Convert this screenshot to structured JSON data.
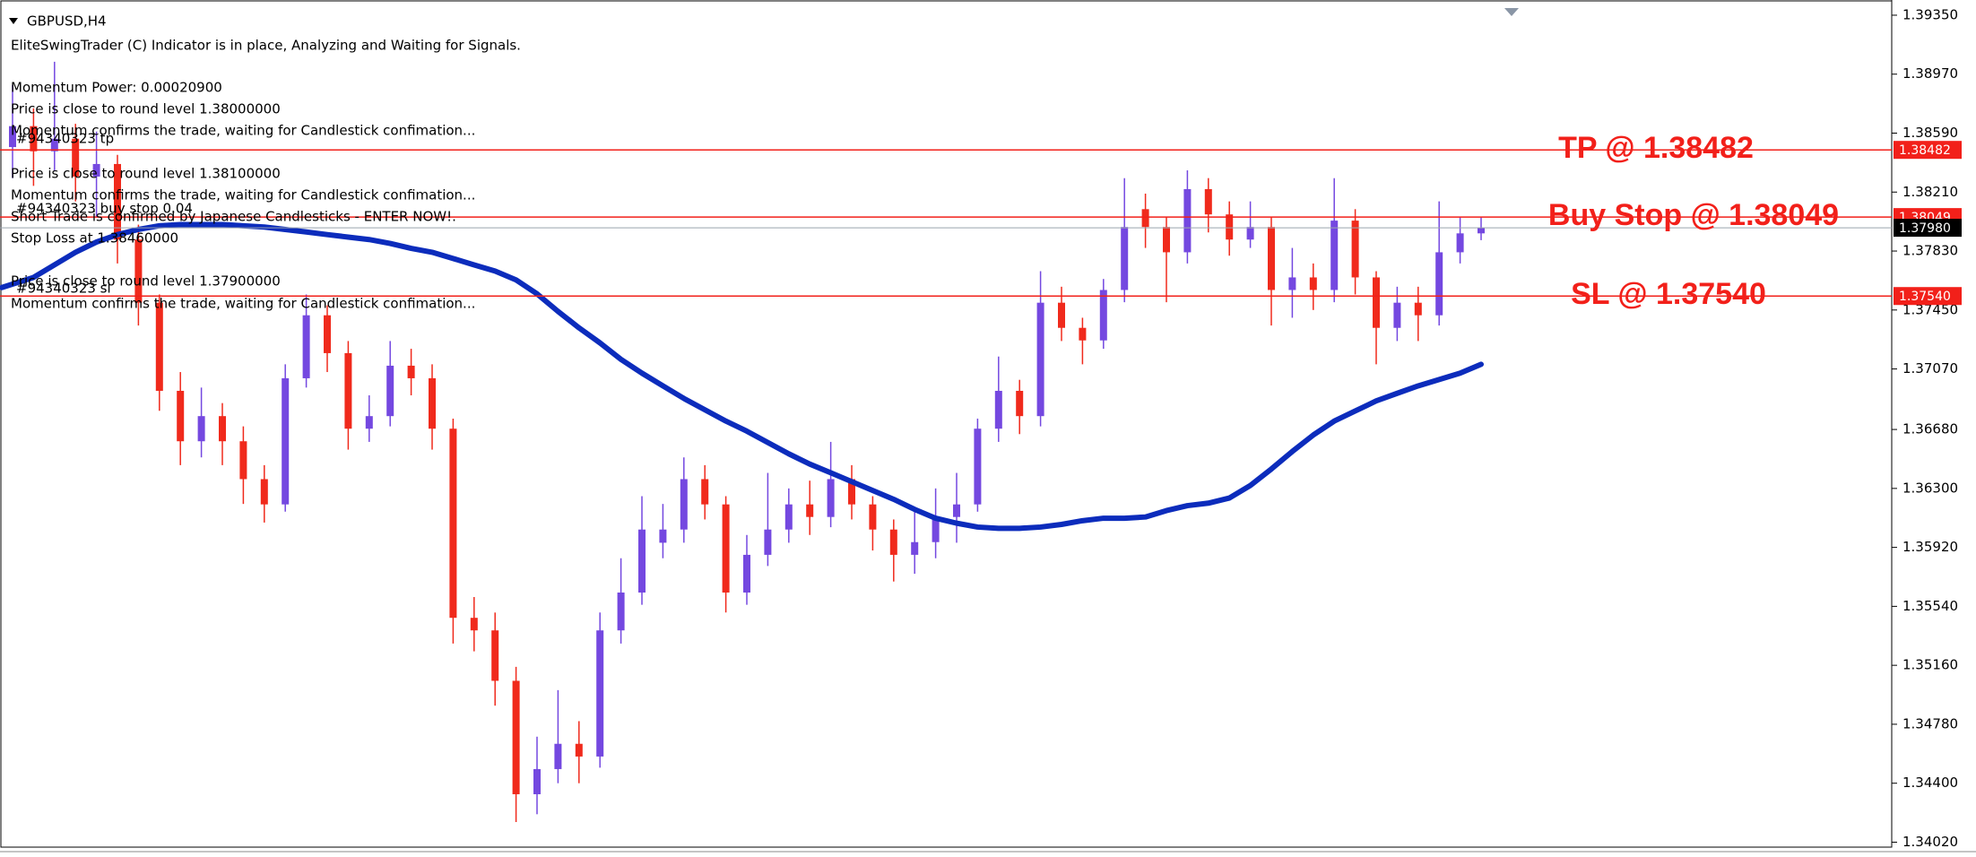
{
  "chart_data": {
    "type": "candlestick",
    "title": "GBPUSD,H4",
    "notes": [
      "EliteSwingTrader (C) Indicator is in place, Analyzing and Waiting for Signals.",
      "Momentum Power: 0.00020900",
      "Price is close to round level 1.38000000",
      "Momentum confirms the trade, waiting for Candlestick confimation...",
      "Price is close to round level 1.38100000",
      "Momentum confirms the trade, waiting for Candlestick confimation...",
      "Short Trade is confirmed by Japanese Candlesticks - ENTER NOW!.",
      "Stop Loss at 1.38460000",
      "Price is close to round level 1.37900000",
      "Momentum confirms the trade, waiting for Candlestick confimation..."
    ],
    "orders": [
      "#94340323 tp",
      "#94340323 buy stop 0.04",
      "#94340323 sl"
    ],
    "ylim": [
      1.33988,
      1.39448
    ],
    "yticks": [
      {
        "value": 1.3935,
        "label": "1.39350"
      },
      {
        "value": 1.3897,
        "label": "1.38970"
      },
      {
        "value": 1.3859,
        "label": "1.38590"
      },
      {
        "value": 1.3821,
        "label": "1.38210"
      },
      {
        "value": 1.3783,
        "label": "1.37830"
      },
      {
        "value": 1.3745,
        "label": "1.37450"
      },
      {
        "value": 1.3707,
        "label": "1.37070"
      },
      {
        "value": 1.3668,
        "label": "1.36680"
      },
      {
        "value": 1.363,
        "label": "1.36300"
      },
      {
        "value": 1.3592,
        "label": "1.35920"
      },
      {
        "value": 1.3554,
        "label": "1.35540"
      },
      {
        "value": 1.3516,
        "label": "1.35160"
      },
      {
        "value": 1.3478,
        "label": "1.34780"
      },
      {
        "value": 1.344,
        "label": "1.34400"
      },
      {
        "value": 1.3402,
        "label": "1.34020"
      }
    ],
    "candles": {
      "up_color": "#7448e0",
      "down_color": "#f02a1c",
      "open": [
        1.385,
        1.38635,
        1.38473,
        1.38554,
        1.3831,
        1.38391,
        1.37904,
        1.37497,
        1.36929,
        1.36604,
        1.36766,
        1.36604,
        1.3636,
        1.36197,
        1.3701,
        1.37416,
        1.37172,
        1.36685,
        1.36766,
        1.37091,
        1.3701,
        1.36685,
        1.35466,
        1.35385,
        1.3506,
        1.34329,
        1.34491,
        1.34654,
        1.34572,
        1.35385,
        1.35629,
        1.3595,
        1.36035,
        1.3636,
        1.36197,
        1.35629,
        1.35872,
        1.36035,
        1.36197,
        1.36116,
        1.3636,
        1.36197,
        1.36035,
        1.35872,
        1.35954,
        1.36116,
        1.36197,
        1.36685,
        1.36929,
        1.36766,
        1.37497,
        1.37335,
        1.37254,
        1.37579,
        1.381,
        1.37985,
        1.37822,
        1.38229,
        1.38066,
        1.37904,
        1.37985,
        1.37579,
        1.3766,
        1.37579,
        1.38026,
        1.3766,
        1.37335,
        1.37497,
        1.37416,
        1.37822,
        1.37944
      ],
      "high": [
        1.389,
        1.3875,
        1.3905,
        1.3865,
        1.386,
        1.3845,
        1.38,
        1.3755,
        1.3705,
        1.3695,
        1.3685,
        1.367,
        1.3645,
        1.371,
        1.3755,
        1.3748,
        1.3725,
        1.369,
        1.3725,
        1.372,
        1.371,
        1.3675,
        1.356,
        1.355,
        1.3515,
        1.347,
        1.35,
        1.348,
        1.355,
        1.3585,
        1.3625,
        1.362,
        1.365,
        1.3645,
        1.3625,
        1.36,
        1.364,
        1.363,
        1.3635,
        1.366,
        1.3645,
        1.3625,
        1.361,
        1.3615,
        1.363,
        1.364,
        1.3675,
        1.3715,
        1.37,
        1.377,
        1.376,
        1.374,
        1.3765,
        1.383,
        1.382,
        1.3805,
        1.3835,
        1.383,
        1.3815,
        1.3815,
        1.3805,
        1.3785,
        1.3775,
        1.383,
        1.381,
        1.377,
        1.376,
        1.376,
        1.3815,
        1.3805,
        1.3805
      ],
      "low": [
        1.383,
        1.3825,
        1.3835,
        1.3815,
        1.3805,
        1.3775,
        1.3735,
        1.368,
        1.3645,
        1.365,
        1.3645,
        1.362,
        1.3608,
        1.3615,
        1.3695,
        1.3705,
        1.3655,
        1.366,
        1.367,
        1.369,
        1.3655,
        1.353,
        1.3525,
        1.349,
        1.3415,
        1.342,
        1.344,
        1.344,
        1.345,
        1.353,
        1.3555,
        1.3585,
        1.3595,
        1.361,
        1.355,
        1.3555,
        1.358,
        1.3595,
        1.36,
        1.3605,
        1.361,
        1.359,
        1.357,
        1.3575,
        1.3585,
        1.3595,
        1.3615,
        1.366,
        1.3665,
        1.367,
        1.3725,
        1.371,
        1.372,
        1.375,
        1.3785,
        1.375,
        1.3775,
        1.3795,
        1.378,
        1.3785,
        1.3735,
        1.374,
        1.3745,
        1.375,
        1.3755,
        1.371,
        1.3725,
        1.3725,
        1.3735,
        1.3775,
        1.379
      ],
      "close": [
        1.38635,
        1.38473,
        1.38554,
        1.3831,
        1.38391,
        1.37904,
        1.37497,
        1.36929,
        1.36604,
        1.36766,
        1.36604,
        1.3636,
        1.36197,
        1.3701,
        1.37416,
        1.37172,
        1.36685,
        1.36766,
        1.37091,
        1.3701,
        1.36685,
        1.35466,
        1.35385,
        1.3506,
        1.34329,
        1.34491,
        1.34654,
        1.34572,
        1.35385,
        1.35629,
        1.36035,
        1.36035,
        1.3636,
        1.36197,
        1.35629,
        1.35872,
        1.36035,
        1.36197,
        1.36116,
        1.3636,
        1.36197,
        1.36035,
        1.35872,
        1.35954,
        1.36116,
        1.36197,
        1.36685,
        1.36929,
        1.36766,
        1.37497,
        1.37335,
        1.37254,
        1.37579,
        1.37985,
        1.37985,
        1.37822,
        1.38229,
        1.38066,
        1.37904,
        1.37985,
        1.37579,
        1.3766,
        1.37579,
        1.38026,
        1.3766,
        1.37335,
        1.37497,
        1.37416,
        1.37822,
        1.37944,
        1.3798
      ]
    },
    "moving_average": {
      "color": "#0c2cbc",
      "values": [
        1.37595,
        1.3766,
        1.37741,
        1.37822,
        1.37888,
        1.37936,
        1.37969,
        1.37993,
        1.38001,
        1.38001,
        1.38001,
        1.37993,
        1.37985,
        1.37969,
        1.37953,
        1.37936,
        1.3792,
        1.37904,
        1.37879,
        1.37847,
        1.37822,
        1.37782,
        1.37741,
        1.37701,
        1.37644,
        1.37554,
        1.37441,
        1.37335,
        1.37238,
        1.37132,
        1.37043,
        1.36961,
        1.3688,
        1.36807,
        1.36734,
        1.36669,
        1.36596,
        1.36523,
        1.36457,
        1.36401,
        1.36344,
        1.36287,
        1.3623,
        1.36165,
        1.36108,
        1.36076,
        1.36051,
        1.36043,
        1.36043,
        1.36051,
        1.36068,
        1.36092,
        1.36108,
        1.36108,
        1.36116,
        1.36157,
        1.36189,
        1.36205,
        1.36238,
        1.36319,
        1.36425,
        1.36538,
        1.36644,
        1.36734,
        1.36799,
        1.36864,
        1.36913,
        1.36961,
        1.37002,
        1.37043,
        1.371
      ]
    },
    "levels": [
      {
        "text": "TP @ 1.38482",
        "value": 1.38482,
        "tag": "1.38482",
        "color": "#f2201a"
      },
      {
        "text": "Buy Stop @ 1.38049",
        "value": 1.38049,
        "tag": "1.38049",
        "color": "#f2201a"
      },
      {
        "text": "SL @ 1.37540",
        "value": 1.3754,
        "tag": "1.37540",
        "color": "#f2201a"
      }
    ],
    "current_price": {
      "value": 1.3798,
      "tag": "1.37980",
      "color": "#000000"
    }
  }
}
